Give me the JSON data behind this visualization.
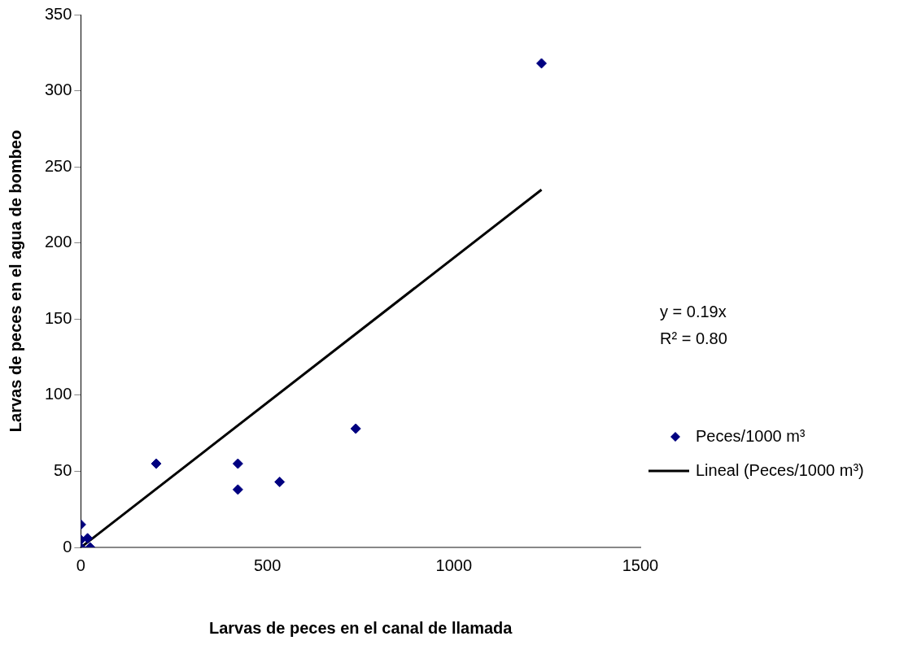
{
  "chart_data": {
    "type": "scatter",
    "xlabel": "Larvas de peces en el canal de llamada",
    "ylabel": "Larvas de peces en el agua de bombeo",
    "xlim": [
      0,
      1500
    ],
    "xticks": [
      0,
      500,
      1000,
      1500
    ],
    "ylim": [
      0,
      350
    ],
    "yticks": [
      0,
      50,
      100,
      150,
      200,
      250,
      300,
      350
    ],
    "grid": false,
    "legend": "right",
    "marker": "diamond",
    "annotations": [
      "y = 0.19x",
      "R² = 0.80"
    ],
    "series": [
      {
        "name": "Peces/1000 m³",
        "color": "#000080",
        "x": [
          0,
          0,
          0,
          18,
          25,
          202,
          421,
          421,
          533,
          737,
          1235
        ],
        "values": [
          15,
          5,
          0,
          6,
          0,
          55,
          55,
          38,
          43,
          78,
          318
        ]
      },
      {
        "name": "Lineal (Peces/1000 m³)",
        "type": "line",
        "color": "#000000",
        "marker": "none",
        "line_style": "solid",
        "x": [
          0,
          1235
        ],
        "values": [
          0,
          235
        ]
      }
    ]
  }
}
